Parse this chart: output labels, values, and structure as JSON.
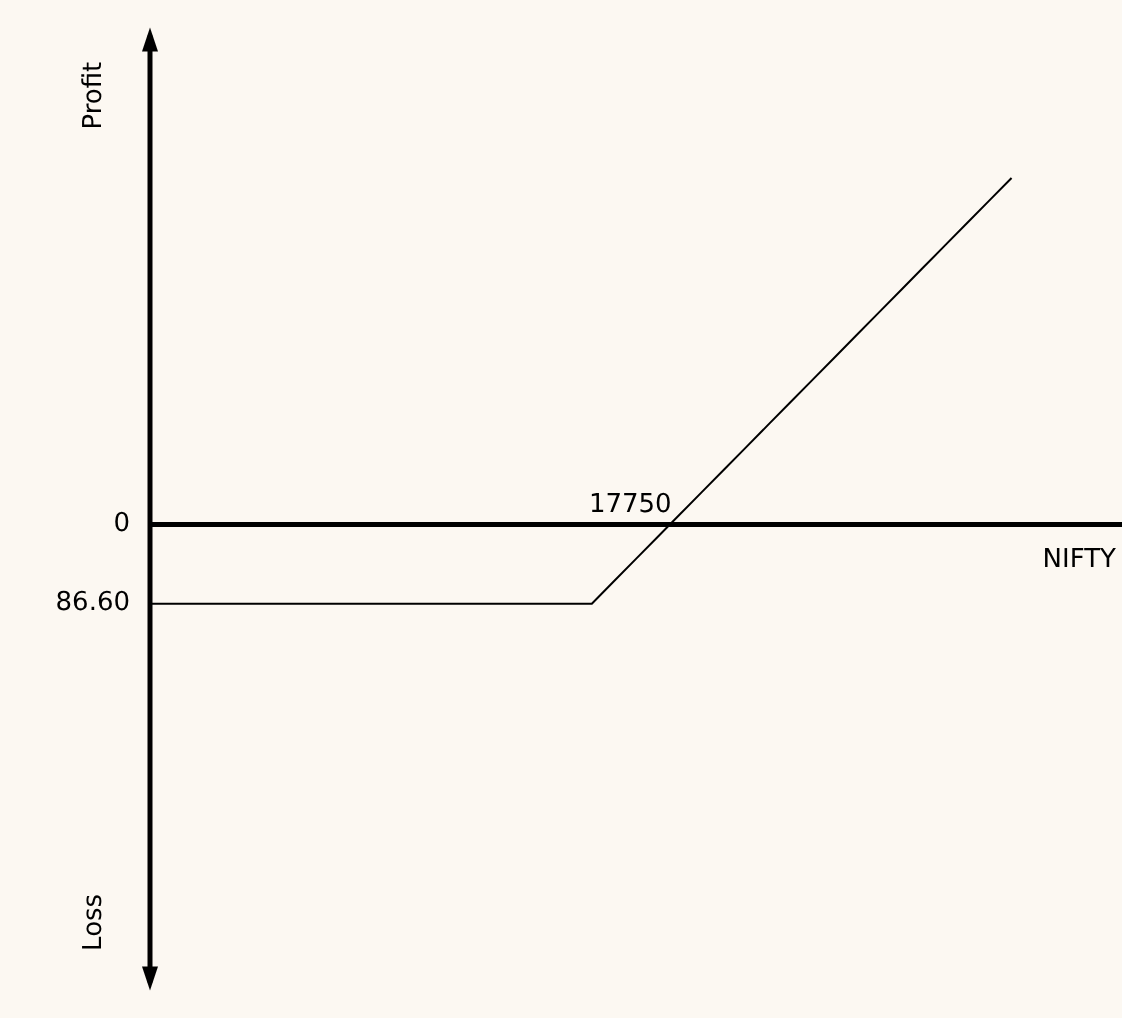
{
  "chart_data": {
    "type": "line",
    "annotations": [
      "17750",
      "Profit",
      "Loss",
      "NIFTY"
    ],
    "categories": [
      null,
      null,
      null,
      null,
      null,
      null,
      null,
      null,
      null,
      null,
      null,
      null,
      null,
      null,
      null,
      null,
      null,
      null,
      null,
      null,
      null,
      null,
      null,
      null,
      null,
      null,
      null,
      null,
      null,
      null,
      null,
      null,
      null,
      null,
      null,
      null,
      null,
      null,
      null,
      null,
      null,
      null,
      null,
      null,
      null
    ],
    "series": [
      {
        "color": "#000000",
        "values": [
          -86.6,
          -86.6,
          -86.6,
          -86.6,
          -86.6,
          -86.6,
          -86.6,
          -86.6,
          -86.6,
          -86.6,
          -86.6,
          -86.6,
          -86.6,
          -86.6,
          -86.6,
          -86.6,
          -86.6,
          -86.6,
          -86.6,
          -86.6,
          -86.6,
          -62.2,
          -37.8,
          -13.4,
          11,
          35.4,
          59.8,
          84.2,
          108.6,
          133,
          157.4,
          181.8,
          206.2,
          230.6,
          255,
          279.4,
          303.8,
          328.2,
          352.6,
          377,
          null,
          null,
          null,
          null,
          null
        ]
      }
    ],
    "ylim": [
      -499,
      532
    ],
    "yticks": [
      {
        "value": -86.6,
        "label": "86.60"
      },
      0
    ],
    "tick_labels": "y",
    "legend": false,
    "marker": "none",
    "line_style": "solid"
  }
}
